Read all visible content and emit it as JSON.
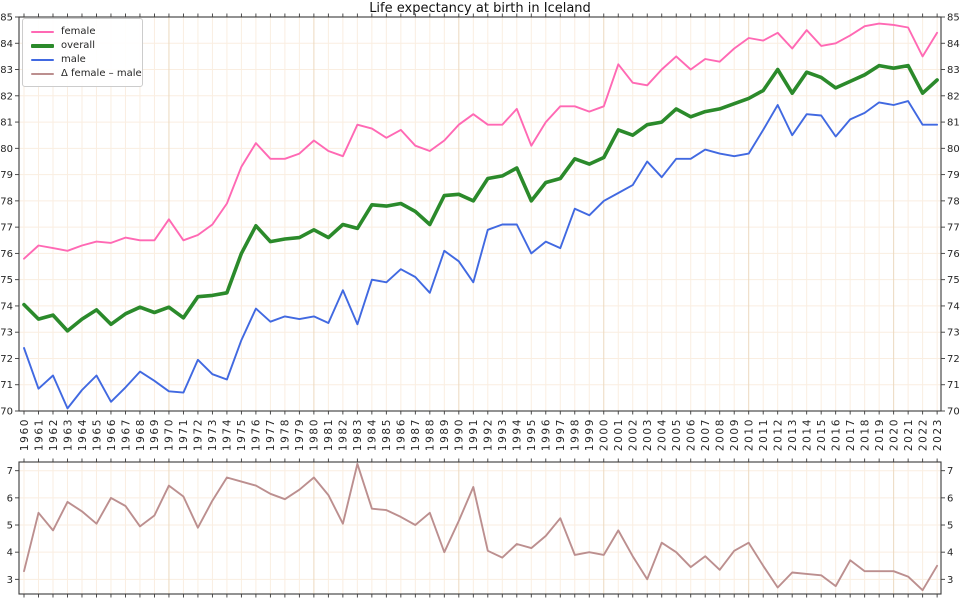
{
  "title": "Life expectancy at birth in Iceland",
  "legend": {
    "items": [
      {
        "label": "female",
        "color": "#ff69b4",
        "weight": 2
      },
      {
        "label": "overall",
        "color": "#2b8a2b",
        "weight": 4
      },
      {
        "label": "male",
        "color": "#4169e1",
        "weight": 2
      },
      {
        "label": "Δ female – male",
        "color": "#bc8f8f",
        "weight": 2
      }
    ]
  },
  "colors": {
    "female": "#ff69b4",
    "overall": "#2b8a2b",
    "male": "#4169e1",
    "delta": "#bc8f8f",
    "grid": "#faeee1",
    "grid_decade": "#ecd9bf",
    "spine": "#3a3a3a",
    "tick_text": "#262626"
  },
  "chart_data": [
    {
      "type": "line",
      "title": "Life expectancy at birth in Iceland",
      "x": [
        1960,
        1961,
        1962,
        1963,
        1964,
        1965,
        1966,
        1967,
        1968,
        1969,
        1970,
        1971,
        1972,
        1973,
        1974,
        1975,
        1976,
        1977,
        1978,
        1979,
        1980,
        1981,
        1982,
        1983,
        1984,
        1985,
        1986,
        1987,
        1988,
        1989,
        1990,
        1991,
        1992,
        1993,
        1994,
        1995,
        1996,
        1997,
        1998,
        1999,
        2000,
        2001,
        2002,
        2003,
        2004,
        2005,
        2006,
        2007,
        2008,
        2009,
        2010,
        2011,
        2012,
        2013,
        2014,
        2015,
        2016,
        2017,
        2018,
        2019,
        2020,
        2021,
        2022,
        2023
      ],
      "ylim": [
        70,
        85
      ],
      "yticks": [
        70,
        71,
        72,
        73,
        74,
        75,
        76,
        77,
        78,
        79,
        80,
        81,
        82,
        83,
        84,
        85
      ],
      "grid": true,
      "legend_position": "upper left",
      "series": [
        {
          "name": "female",
          "color": "#ff69b4",
          "width": 1.9,
          "values": [
            75.8,
            76.3,
            76.2,
            76.1,
            76.3,
            76.45,
            76.4,
            76.6,
            76.5,
            76.5,
            77.3,
            76.5,
            76.7,
            77.1,
            77.9,
            79.3,
            80.2,
            79.6,
            79.6,
            79.8,
            80.3,
            79.9,
            79.7,
            80.9,
            80.75,
            80.4,
            80.7,
            80.1,
            79.9,
            80.3,
            80.9,
            81.3,
            80.9,
            80.9,
            81.5,
            80.1,
            81.0,
            81.6,
            81.6,
            81.4,
            81.6,
            83.2,
            82.5,
            82.4,
            83.0,
            83.5,
            83.0,
            83.4,
            83.3,
            83.8,
            84.2,
            84.1,
            84.4,
            83.8,
            84.5,
            83.9,
            84.0,
            84.3,
            84.65,
            84.75,
            84.7,
            84.6,
            83.5,
            84.4
          ]
        },
        {
          "name": "overall",
          "color": "#2b8a2b",
          "width": 3.6,
          "values": [
            74.05,
            73.5,
            73.65,
            73.05,
            73.5,
            73.85,
            73.3,
            73.7,
            73.95,
            73.75,
            73.95,
            73.55,
            74.35,
            74.4,
            74.5,
            76.0,
            77.05,
            76.45,
            76.55,
            76.6,
            76.9,
            76.6,
            77.1,
            76.95,
            77.85,
            77.8,
            77.9,
            77.6,
            77.1,
            78.2,
            78.25,
            78.0,
            78.85,
            78.95,
            79.25,
            78.0,
            78.7,
            78.85,
            79.6,
            79.4,
            79.65,
            80.7,
            80.5,
            80.9,
            81.0,
            81.5,
            81.2,
            81.4,
            81.5,
            81.7,
            81.9,
            82.2,
            83.0,
            82.1,
            82.9,
            82.7,
            82.3,
            82.55,
            82.8,
            83.15,
            83.05,
            83.15,
            82.1,
            82.6
          ]
        },
        {
          "name": "male",
          "color": "#4169e1",
          "width": 1.9,
          "values": [
            72.4,
            70.85,
            71.35,
            70.1,
            70.8,
            71.35,
            70.35,
            70.9,
            71.5,
            71.15,
            70.75,
            70.7,
            71.95,
            71.4,
            71.2,
            72.7,
            73.9,
            73.4,
            73.6,
            73.5,
            73.6,
            73.35,
            74.6,
            73.3,
            75.0,
            74.9,
            75.4,
            75.1,
            74.5,
            76.1,
            75.7,
            74.9,
            76.9,
            77.1,
            77.1,
            76.0,
            76.45,
            76.2,
            77.7,
            77.45,
            78.0,
            78.3,
            78.6,
            79.5,
            78.9,
            79.6,
            79.6,
            79.95,
            79.8,
            79.7,
            79.8,
            80.7,
            81.65,
            80.5,
            81.3,
            81.25,
            80.45,
            81.1,
            81.35,
            81.75,
            81.65,
            81.8,
            80.9,
            80.9
          ]
        }
      ]
    },
    {
      "type": "line",
      "title": "",
      "x": [
        1960,
        1961,
        1962,
        1963,
        1964,
        1965,
        1966,
        1967,
        1968,
        1969,
        1970,
        1971,
        1972,
        1973,
        1974,
        1975,
        1976,
        1977,
        1978,
        1979,
        1980,
        1981,
        1982,
        1983,
        1984,
        1985,
        1986,
        1987,
        1988,
        1989,
        1990,
        1991,
        1992,
        1993,
        1994,
        1995,
        1996,
        1997,
        1998,
        1999,
        2000,
        2001,
        2002,
        2003,
        2004,
        2005,
        2006,
        2007,
        2008,
        2009,
        2010,
        2011,
        2012,
        2013,
        2014,
        2015,
        2016,
        2017,
        2018,
        2019,
        2020,
        2021,
        2022,
        2023
      ],
      "ylim": [
        2.46,
        7.32
      ],
      "yticks": [
        3,
        4,
        5,
        6,
        7
      ],
      "grid": true,
      "series": [
        {
          "name": "Δ female – male",
          "color": "#bc8f8f",
          "width": 1.9,
          "values": [
            3.3,
            5.45,
            4.8,
            5.85,
            5.5,
            5.05,
            6.0,
            5.7,
            4.95,
            5.35,
            6.45,
            6.05,
            4.9,
            5.9,
            6.75,
            6.6,
            6.45,
            6.15,
            5.95,
            6.3,
            6.75,
            6.1,
            5.05,
            7.25,
            5.6,
            5.55,
            5.3,
            5.0,
            5.45,
            4.0,
            5.15,
            6.4,
            4.05,
            3.8,
            4.3,
            4.15,
            4.6,
            5.25,
            3.9,
            4.0,
            3.9,
            4.8,
            3.85,
            3.0,
            4.35,
            4.0,
            3.45,
            3.85,
            3.35,
            4.05,
            4.35,
            3.5,
            2.7,
            3.25,
            3.2,
            3.15,
            2.75,
            3.7,
            3.3,
            3.3,
            3.3,
            3.1,
            2.6,
            3.5
          ]
        }
      ]
    }
  ]
}
